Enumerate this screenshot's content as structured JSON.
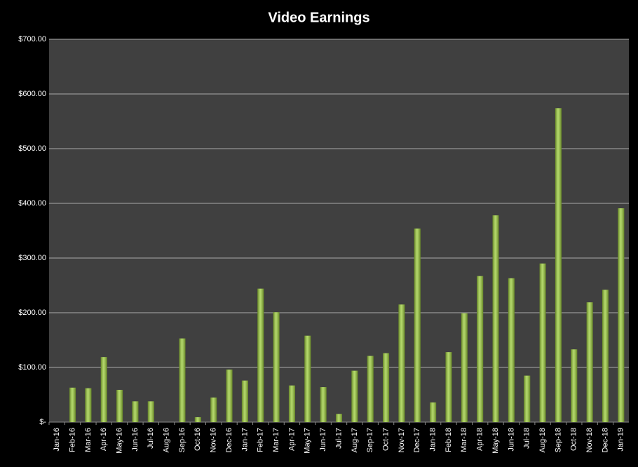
{
  "chart_data": {
    "type": "bar",
    "title": "Video Earnings",
    "categories": [
      "Jan-16",
      "Feb-16",
      "Mar-16",
      "Apr-16",
      "May-16",
      "Jun-16",
      "Jul-16",
      "Aug-16",
      "Sep-16",
      "Oct-16",
      "Nov-16",
      "Dec-16",
      "Jan-17",
      "Feb-17",
      "Mar-17",
      "Apr-17",
      "May-17",
      "Jun-17",
      "Jul-17",
      "Aug-17",
      "Sep-17",
      "Oct-17",
      "Nov-17",
      "Dec-17",
      "Jan-18",
      "Feb-18",
      "Mar-18",
      "Apr-18",
      "May-18",
      "Jun-18",
      "Jul-18",
      "Aug-18",
      "Sep-18",
      "Oct-18",
      "Nov-18",
      "Dec-18",
      "Jan-19"
    ],
    "values": [
      0,
      63,
      62,
      119,
      59,
      38,
      38,
      0,
      153,
      9,
      45,
      96,
      76,
      244,
      201,
      67,
      158,
      64,
      15,
      94,
      121,
      126,
      215,
      354,
      36,
      128,
      199,
      267,
      378,
      263,
      85,
      290,
      574,
      133,
      219,
      242,
      391
    ],
    "color": "#9bcc3a",
    "ylim": [
      0,
      700
    ],
    "yticks": [
      {
        "value": 0,
        "label": "$-"
      },
      {
        "value": 100,
        "label": "$100.00"
      },
      {
        "value": 200,
        "label": "$200.00"
      },
      {
        "value": 300,
        "label": "$300.00"
      },
      {
        "value": 400,
        "label": "$400.00"
      },
      {
        "value": 500,
        "label": "$500.00"
      },
      {
        "value": 600,
        "label": "$600.00"
      },
      {
        "value": 700,
        "label": "$700.00"
      }
    ],
    "grid": true
  }
}
